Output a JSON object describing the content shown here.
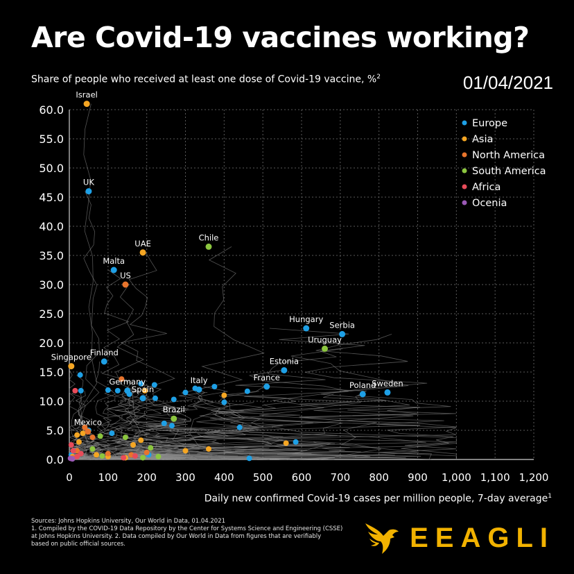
{
  "header": {
    "title": "Are Covid-19 vaccines working?",
    "subtitle": "Share of people who received at least one dose of Covid-19 vaccine, %",
    "subtitle_sup": "2",
    "date": "01/04/2021"
  },
  "axis": {
    "xlabel": "Daily new confirmed Covid-19 cases per million people, 7-day average",
    "xlabel_sup": "1"
  },
  "footer": {
    "line1": "Sources: Johns Hopkins University, Our World in Data, 01.04.2021",
    "line2": "1. Compiled by the COVID-19 Data Repository by the Center for Systems Science and Engineering (CSSE)",
    "line3": "at Johns Hopkins University. 2.  Data compiled by Our World in Data from figures that are verifiably",
    "line4": "based on public official sources."
  },
  "brand": {
    "name": "EEAGLI",
    "logo_icon": "eagle-icon",
    "color": "#f2b200"
  },
  "chart_data": {
    "type": "scatter",
    "xlim": [
      0,
      1200
    ],
    "ylim": [
      0,
      60
    ],
    "xticks": [
      "0",
      "100",
      "200",
      "300",
      "400",
      "500",
      "600",
      "700",
      "800",
      "900",
      "1,000",
      "1,100",
      "1,200"
    ],
    "yticks": [
      "0.0",
      "5.0",
      "10.0",
      "15.0",
      "20.0",
      "25.0",
      "30.0",
      "35.0",
      "40.0",
      "45.0",
      "50.0",
      "55.0",
      "60.0"
    ],
    "grid": true,
    "legend_position": "top-right",
    "legend": [
      {
        "name": "Europe",
        "color": "#1ea0e6"
      },
      {
        "name": "Asia",
        "color": "#f5a623"
      },
      {
        "name": "North America",
        "color": "#e8742c"
      },
      {
        "name": "South America",
        "color": "#8cc63f"
      },
      {
        "name": "Africa",
        "color": "#e84c5a"
      },
      {
        "name": "Ocenia",
        "color": "#9b59b6"
      }
    ],
    "labeled_points": [
      {
        "label": "Israel",
        "region": "Asia",
        "x": 45,
        "y": 61
      },
      {
        "label": "UK",
        "region": "Europe",
        "x": 50,
        "y": 46
      },
      {
        "label": "UAE",
        "region": "Asia",
        "x": 190,
        "y": 35.5
      },
      {
        "label": "Chile",
        "region": "South America",
        "x": 360,
        "y": 36.5
      },
      {
        "label": "Malta",
        "region": "Europe",
        "x": 115,
        "y": 32.5
      },
      {
        "label": "US",
        "region": "North America",
        "x": 145,
        "y": 30
      },
      {
        "label": "Hungary",
        "region": "Europe",
        "x": 612,
        "y": 22.5
      },
      {
        "label": "Serbia",
        "region": "Europe",
        "x": 705,
        "y": 21.5
      },
      {
        "label": "Uruguay",
        "region": "South America",
        "x": 660,
        "y": 19
      },
      {
        "label": "Singapore",
        "region": "Asia",
        "x": 5,
        "y": 16
      },
      {
        "label": "Finland",
        "region": "Europe",
        "x": 90,
        "y": 16.8
      },
      {
        "label": "Estonia",
        "region": "Europe",
        "x": 555,
        "y": 15.3
      },
      {
        "label": "France",
        "region": "Europe",
        "x": 510,
        "y": 12.5
      },
      {
        "label": "Italy",
        "region": "Europe",
        "x": 335,
        "y": 12
      },
      {
        "label": "Germany",
        "region": "Europe",
        "x": 150,
        "y": 11.8
      },
      {
        "label": "Spain",
        "region": "Europe",
        "x": 190,
        "y": 10.5
      },
      {
        "label": "Poland",
        "region": "Europe",
        "x": 758,
        "y": 11.2
      },
      {
        "label": "Sweden",
        "region": "Europe",
        "x": 822,
        "y": 11.5
      },
      {
        "label": "Brazil",
        "region": "South America",
        "x": 270,
        "y": 7
      },
      {
        "label": "Mexico",
        "region": "North America",
        "x": 48,
        "y": 4.8
      }
    ],
    "unlabeled_points": [
      {
        "region": "Europe",
        "x": 28,
        "y": 14.5
      },
      {
        "region": "Europe",
        "x": 30,
        "y": 11.8
      },
      {
        "region": "Europe",
        "x": 100,
        "y": 11.9
      },
      {
        "region": "Europe",
        "x": 125,
        "y": 11.8
      },
      {
        "region": "Europe",
        "x": 155,
        "y": 11.2
      },
      {
        "region": "Europe",
        "x": 185,
        "y": 13
      },
      {
        "region": "Europe",
        "x": 220,
        "y": 12.8
      },
      {
        "region": "Europe",
        "x": 222,
        "y": 10.5
      },
      {
        "region": "Europe",
        "x": 270,
        "y": 10.3
      },
      {
        "region": "Europe",
        "x": 300,
        "y": 11.5
      },
      {
        "region": "Europe",
        "x": 325,
        "y": 12.2
      },
      {
        "region": "Europe",
        "x": 375,
        "y": 12.5
      },
      {
        "region": "Europe",
        "x": 400,
        "y": 9.8
      },
      {
        "region": "Europe",
        "x": 460,
        "y": 11.7
      },
      {
        "region": "Europe",
        "x": 440,
        "y": 5.5
      },
      {
        "region": "Europe",
        "x": 585,
        "y": 3
      },
      {
        "region": "Europe",
        "x": 50,
        "y": 5
      },
      {
        "region": "Europe",
        "x": 110,
        "y": 4.5
      },
      {
        "region": "Europe",
        "x": 245,
        "y": 6.2
      },
      {
        "region": "Europe",
        "x": 265,
        "y": 5.8
      },
      {
        "region": "Europe",
        "x": 205,
        "y": 0.8
      },
      {
        "region": "Europe",
        "x": 465,
        "y": 0.2
      },
      {
        "region": "Europe",
        "x": 5,
        "y": 0.8
      },
      {
        "region": "Europe",
        "x": 15,
        "y": 1.5
      },
      {
        "region": "Asia",
        "x": 195,
        "y": 11.8
      },
      {
        "region": "Asia",
        "x": 400,
        "y": 11
      },
      {
        "region": "Asia",
        "x": 20,
        "y": 4.2
      },
      {
        "region": "Asia",
        "x": 35,
        "y": 4.5
      },
      {
        "region": "Asia",
        "x": 25,
        "y": 3
      },
      {
        "region": "Asia",
        "x": 185,
        "y": 3.3
      },
      {
        "region": "Asia",
        "x": 165,
        "y": 2.5
      },
      {
        "region": "Asia",
        "x": 300,
        "y": 1.5
      },
      {
        "region": "Asia",
        "x": 360,
        "y": 1.8
      },
      {
        "region": "Asia",
        "x": 560,
        "y": 2.8
      },
      {
        "region": "Asia",
        "x": 70,
        "y": 0.8
      },
      {
        "region": "Asia",
        "x": 100,
        "y": 0.5
      },
      {
        "region": "Asia",
        "x": 145,
        "y": 0.3
      },
      {
        "region": "Asia",
        "x": 8,
        "y": 0.5
      },
      {
        "region": "North America",
        "x": 40,
        "y": 5.5
      },
      {
        "region": "North America",
        "x": 60,
        "y": 3.8
      },
      {
        "region": "North America",
        "x": 135,
        "y": 13.8
      },
      {
        "region": "North America",
        "x": 100,
        "y": 1
      },
      {
        "region": "North America",
        "x": 160,
        "y": 0.8
      },
      {
        "region": "North America",
        "x": 200,
        "y": 1.2
      },
      {
        "region": "North America",
        "x": 20,
        "y": 1.5
      },
      {
        "region": "North America",
        "x": 10,
        "y": 0.3
      },
      {
        "region": "South America",
        "x": 80,
        "y": 4
      },
      {
        "region": "South America",
        "x": 145,
        "y": 3.8
      },
      {
        "region": "South America",
        "x": 210,
        "y": 2
      },
      {
        "region": "South America",
        "x": 60,
        "y": 1.8
      },
      {
        "region": "South America",
        "x": 230,
        "y": 0.5
      },
      {
        "region": "South America",
        "x": 85,
        "y": 0.6
      },
      {
        "region": "South America",
        "x": 190,
        "y": 0.3
      },
      {
        "region": "Africa",
        "x": 15,
        "y": 11.8
      },
      {
        "region": "Africa",
        "x": 5,
        "y": 2.5
      },
      {
        "region": "Africa",
        "x": 10,
        "y": 1.5
      },
      {
        "region": "Africa",
        "x": 30,
        "y": 1
      },
      {
        "region": "Africa",
        "x": 20,
        "y": 0.5
      },
      {
        "region": "Africa",
        "x": 140,
        "y": 0.3
      },
      {
        "region": "Africa",
        "x": 170,
        "y": 0.6
      },
      {
        "region": "Ocenia",
        "x": 3,
        "y": 0.2
      },
      {
        "region": "Ocenia",
        "x": 8,
        "y": 0.1
      }
    ]
  }
}
